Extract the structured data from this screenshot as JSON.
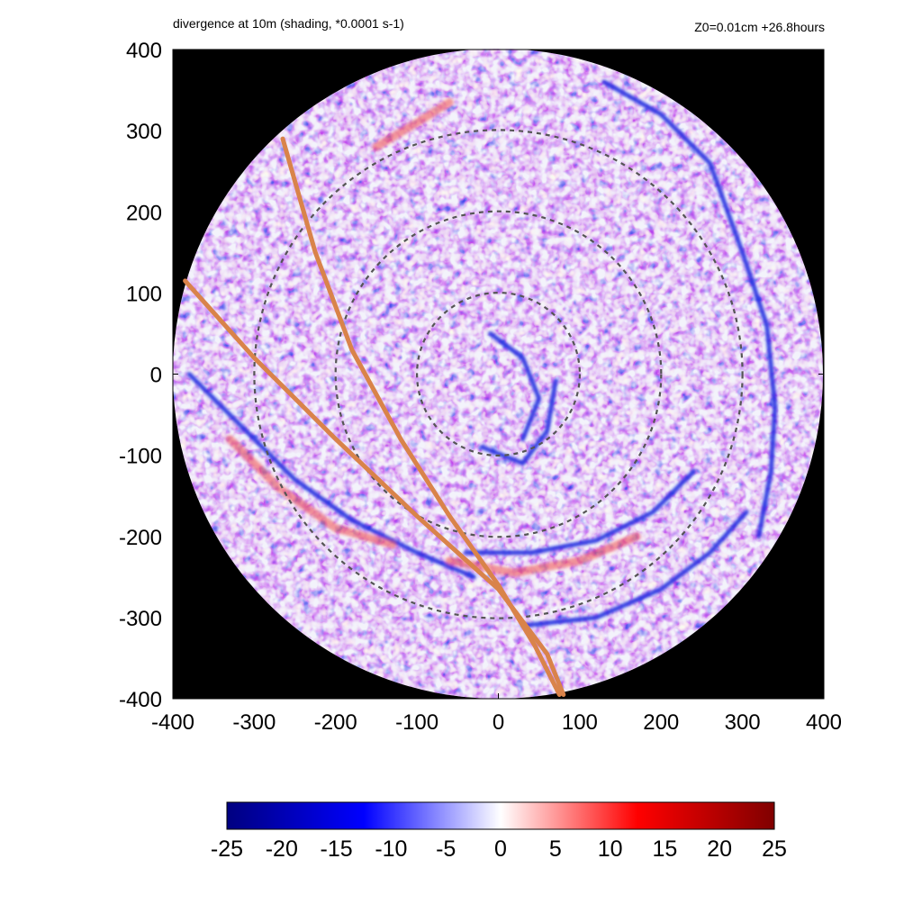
{
  "chart_data": {
    "type": "heatmap",
    "title": "divergence at 10m (shading, *0.0001 s-1)",
    "subtitle": "Z0=0.01cm  +26.8hours",
    "xlabel": "",
    "ylabel": "",
    "xlim": [
      -400,
      400
    ],
    "ylim": [
      -400,
      400
    ],
    "x_ticks": [
      "-400",
      "-300",
      "-200",
      "-100",
      "0",
      "100",
      "200",
      "300",
      "400"
    ],
    "y_ticks": [
      "400",
      "300",
      "200",
      "100",
      "0",
      "-100",
      "-200",
      "-300",
      "-400"
    ],
    "domain_radius": 400,
    "reference_circle_radii": [
      100,
      200,
      300
    ],
    "colorbar": {
      "ticks": [
        "-25",
        "-20",
        "-15",
        "-10",
        "-5",
        "0",
        "5",
        "10",
        "15",
        "20",
        "25"
      ],
      "range": [
        -25,
        25
      ],
      "colors": [
        "#000080",
        "#0000ff",
        "#ffffff",
        "#ff0000",
        "#800000"
      ]
    },
    "tracks": [
      {
        "name": "track-1",
        "points": [
          [
            -385,
            115
          ],
          [
            -300,
            20
          ],
          [
            -200,
            -80
          ],
          [
            -100,
            -175
          ],
          [
            0,
            -265
          ],
          [
            60,
            -345
          ],
          [
            80,
            -395
          ]
        ]
      },
      {
        "name": "track-2",
        "points": [
          [
            -265,
            290
          ],
          [
            -225,
            150
          ],
          [
            -180,
            30
          ],
          [
            -120,
            -80
          ],
          [
            -60,
            -175
          ],
          [
            0,
            -260
          ],
          [
            45,
            -335
          ],
          [
            75,
            -395
          ]
        ]
      }
    ],
    "bands": [
      {
        "name": "outer-convergence-band-ne",
        "sign": "negative",
        "points": [
          [
            130,
            360
          ],
          [
            200,
            320
          ],
          [
            260,
            260
          ],
          [
            300,
            150
          ],
          [
            330,
            60
          ],
          [
            340,
            -40
          ],
          [
            335,
            -120
          ],
          [
            320,
            -200
          ]
        ]
      },
      {
        "name": "convergence-band-sw",
        "sign": "negative",
        "points": [
          [
            -380,
            0
          ],
          [
            -320,
            -60
          ],
          [
            -250,
            -130
          ],
          [
            -180,
            -180
          ],
          [
            -100,
            -220
          ],
          [
            -30,
            -250
          ]
        ]
      },
      {
        "name": "convergence-band-s",
        "sign": "negative",
        "points": [
          [
            -40,
            -220
          ],
          [
            40,
            -220
          ],
          [
            120,
            -205
          ],
          [
            190,
            -170
          ],
          [
            240,
            -120
          ]
        ]
      },
      {
        "name": "convergence-band-se",
        "sign": "negative",
        "points": [
          [
            30,
            -310
          ],
          [
            120,
            -300
          ],
          [
            200,
            -265
          ],
          [
            260,
            -220
          ],
          [
            305,
            -170
          ]
        ]
      },
      {
        "name": "inner-spiral-band-1",
        "sign": "negative",
        "points": [
          [
            -10,
            50
          ],
          [
            30,
            20
          ],
          [
            50,
            -30
          ],
          [
            30,
            -80
          ]
        ]
      },
      {
        "name": "inner-spiral-band-2",
        "sign": "negative",
        "points": [
          [
            70,
            -10
          ],
          [
            60,
            -70
          ],
          [
            30,
            -110
          ],
          [
            -20,
            -90
          ]
        ]
      },
      {
        "name": "divergence-patch-sw",
        "sign": "positive",
        "points": [
          [
            -330,
            -80
          ],
          [
            -270,
            -140
          ],
          [
            -200,
            -190
          ],
          [
            -130,
            -210
          ]
        ]
      },
      {
        "name": "divergence-patch-s",
        "sign": "positive",
        "points": [
          [
            -60,
            -230
          ],
          [
            20,
            -245
          ],
          [
            100,
            -230
          ],
          [
            170,
            -200
          ]
        ]
      },
      {
        "name": "divergence-patch-ne",
        "sign": "positive",
        "points": [
          [
            -150,
            280
          ],
          [
            -100,
            310
          ],
          [
            -60,
            335
          ]
        ]
      }
    ]
  }
}
